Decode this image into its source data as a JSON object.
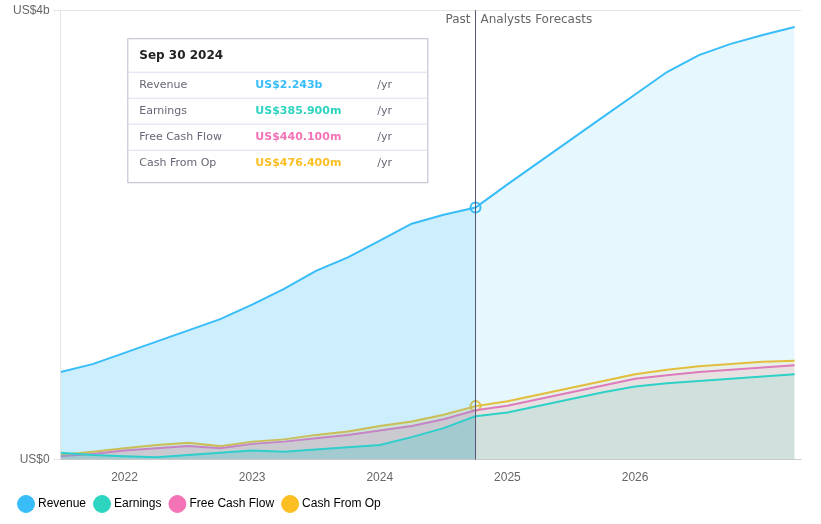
{
  "chart_data": {
    "type": "area",
    "x": [
      2021.5,
      2021.75,
      2022.0,
      2022.25,
      2022.5,
      2022.75,
      2023.0,
      2023.25,
      2023.5,
      2023.75,
      2024.0,
      2024.25,
      2024.5,
      2024.75,
      2025.0,
      2025.25,
      2025.5,
      2025.75,
      2026.0,
      2026.25,
      2026.5,
      2026.75,
      2027.0,
      2027.25
    ],
    "series": [
      {
        "name": "Revenue",
        "color": "#38bdf8",
        "values": [
          0.78,
          0.85,
          0.95,
          1.05,
          1.15,
          1.25,
          1.38,
          1.52,
          1.68,
          1.8,
          1.95,
          2.1,
          2.18,
          2.243,
          2.45,
          2.65,
          2.85,
          3.05,
          3.25,
          3.45,
          3.6,
          3.7,
          3.78,
          3.85
        ]
      },
      {
        "name": "Earnings",
        "color": "#2dd4bf",
        "values": [
          0.06,
          0.04,
          0.03,
          0.02,
          0.04,
          0.06,
          0.08,
          0.07,
          0.09,
          0.11,
          0.13,
          0.2,
          0.28,
          0.386,
          0.42,
          0.48,
          0.54,
          0.6,
          0.65,
          0.68,
          0.7,
          0.72,
          0.74,
          0.76
        ]
      },
      {
        "name": "Free Cash Flow",
        "color": "#f472b6",
        "values": [
          0.03,
          0.05,
          0.08,
          0.1,
          0.12,
          0.1,
          0.14,
          0.16,
          0.19,
          0.22,
          0.26,
          0.3,
          0.36,
          0.44,
          0.48,
          0.54,
          0.6,
          0.66,
          0.72,
          0.75,
          0.78,
          0.8,
          0.82,
          0.84
        ]
      },
      {
        "name": "Cash From Op",
        "color": "#fbbf24",
        "values": [
          0.04,
          0.07,
          0.1,
          0.13,
          0.15,
          0.12,
          0.16,
          0.18,
          0.22,
          0.25,
          0.3,
          0.34,
          0.4,
          0.476,
          0.52,
          0.58,
          0.64,
          0.7,
          0.76,
          0.8,
          0.83,
          0.85,
          0.87,
          0.88
        ]
      }
    ],
    "xlim": [
      2021.5,
      2027.3
    ],
    "xticks": [
      2022,
      2023,
      2024,
      2025,
      2026
    ],
    "ylim": [
      0,
      4.0
    ],
    "yticks": [
      {
        "value": 0,
        "label": "US$0"
      },
      {
        "value": 4.0,
        "label": "US$4b"
      }
    ],
    "grid": "y",
    "legend": "bottom",
    "divider": {
      "x": 2024.75,
      "left_label": "Past",
      "right_label": "Analysts Forecasts"
    },
    "tooltip_box": {
      "title": "Sep 30 2024",
      "rows": [
        {
          "label": "Revenue",
          "value": "US$2.243b",
          "unit": "/yr"
        },
        {
          "label": "Earnings",
          "value": "US$385.900m",
          "unit": "/yr"
        },
        {
          "label": "Free Cash Flow",
          "value": "US$440.100m",
          "unit": "/yr"
        },
        {
          "label": "Cash From Op",
          "value": "US$476.400m",
          "unit": "/yr"
        }
      ]
    }
  }
}
